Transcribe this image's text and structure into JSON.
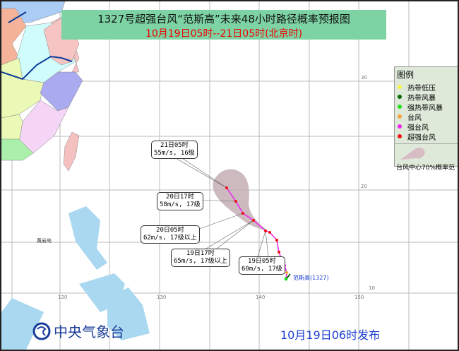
{
  "title": "1327号超强台风“范斯高”未来48小时路径概率预报图",
  "subtitle": "10月19日05时--21日05时(北京时)",
  "legend": {
    "heading": "图例",
    "items": [
      {
        "label": "热带低压",
        "color": "#f5f542"
      },
      {
        "label": "热带风暴",
        "color": "#0a6a0a"
      },
      {
        "label": "强热带风暴",
        "color": "#22e022"
      },
      {
        "label": "台风",
        "color": "#f5a040"
      },
      {
        "label": "强台风",
        "color": "#ee22ee"
      },
      {
        "label": "超强台风",
        "color": "#ee1111"
      }
    ],
    "cone_label": "台风中心70%概率范"
  },
  "forecasts": [
    {
      "time": "21日05时",
      "wind": "55m/s, 16级"
    },
    {
      "time": "20日17时",
      "wind": "58m/s, 17级"
    },
    {
      "time": "20日05时",
      "wind": "62m/s, 17级以上"
    },
    {
      "time": "19日17时",
      "wind": "65m/s, 17级以上"
    },
    {
      "time": "19日05时",
      "wind": "60m/s, 17级"
    }
  ],
  "typhoon_label": "范斯高(1327)",
  "place_label": "黄岩岛",
  "lon_labels": [
    "120",
    "130",
    "140",
    "150"
  ],
  "lat_labels": [
    "30",
    "20",
    "10"
  ],
  "agency": "中央气象台",
  "issued": "10月19日06时发布"
}
